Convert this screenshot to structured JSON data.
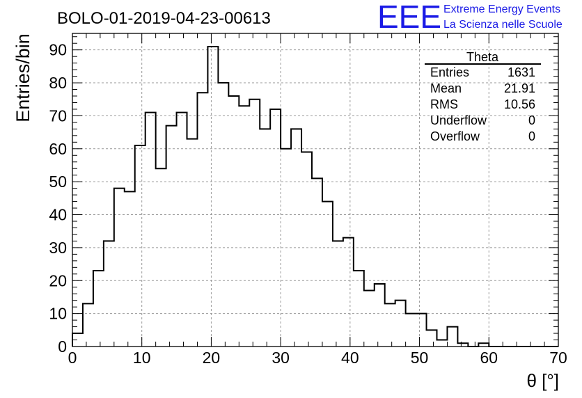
{
  "header": {
    "run_title": "BOLO-01-2019-04-23-00613",
    "logo_text": "EEE",
    "logo_line1": "Extreme Energy Events",
    "logo_line2": "La Scienza nelle Scuole"
  },
  "colors": {
    "logo": "#1a1ae6",
    "line": "#000000",
    "grid": "#999999"
  },
  "stats": {
    "title": "Theta",
    "rows": [
      {
        "label": "Entries",
        "value": "1631"
      },
      {
        "label": "Mean",
        "value": "21.91"
      },
      {
        "label": "RMS",
        "value": "10.56"
      },
      {
        "label": "Underflow",
        "value": "0"
      },
      {
        "label": "Overflow",
        "value": "0"
      }
    ]
  },
  "chart_data": {
    "type": "histogram",
    "title": "BOLO-01-2019-04-23-00613",
    "xlabel": "θ [°]",
    "ylabel": "Entries/bin",
    "xlim": [
      0,
      70
    ],
    "ylim": [
      0,
      95
    ],
    "xticks": [
      0,
      10,
      20,
      30,
      40,
      50,
      60,
      70
    ],
    "yticks": [
      0,
      10,
      20,
      30,
      40,
      50,
      60,
      70,
      80,
      90
    ],
    "grid": true,
    "bin_edges": [
      0,
      1.5,
      3,
      4.5,
      6,
      7.5,
      9,
      10.5,
      12,
      13.5,
      15,
      16.5,
      18,
      19.5,
      21,
      22.5,
      24,
      25.5,
      27,
      28.5,
      30,
      31.5,
      33,
      34.5,
      36,
      37.5,
      39,
      40.5,
      42,
      43.5,
      45,
      46.5,
      48,
      49.5,
      51,
      52.5,
      54,
      55.5,
      57,
      58.5,
      60,
      61.5,
      63,
      64.5,
      66,
      67.5,
      69,
      70
    ],
    "values": [
      4,
      13,
      23,
      32,
      48,
      47,
      61,
      71,
      54,
      67,
      71,
      63,
      77,
      91,
      80,
      76,
      73,
      75,
      66,
      72,
      60,
      66,
      59,
      51,
      44,
      32,
      33,
      23,
      17,
      19,
      13,
      14,
      10,
      10,
      5,
      2,
      6,
      1,
      0,
      1,
      0,
      0,
      0,
      0,
      0,
      0,
      0
    ]
  }
}
